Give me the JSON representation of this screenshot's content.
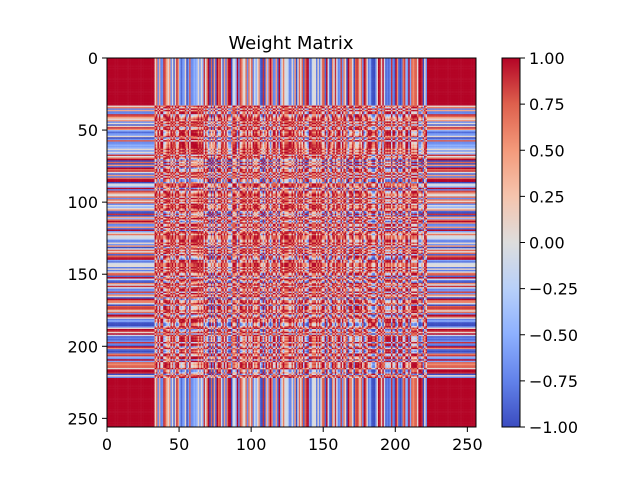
{
  "chart_data": {
    "type": "heatmap",
    "title": "Weight Matrix",
    "xlabel": "",
    "ylabel": "",
    "matrix_size": 256,
    "xlim": [
      0,
      256
    ],
    "ylim": [
      256,
      0
    ],
    "x_ticks": [
      0,
      50,
      100,
      150,
      200,
      250
    ],
    "y_ticks": [
      0,
      50,
      100,
      150,
      200,
      250
    ],
    "colormap": "coolwarm",
    "value_range": [
      -1.0,
      1.0
    ],
    "colorbar": {
      "ticks": [
        1.0,
        0.75,
        0.5,
        0.25,
        0.0,
        -0.25,
        -0.5,
        -0.75,
        -1.0
      ],
      "tick_labels": [
        "1.00",
        "0.75",
        "0.50",
        "0.25",
        "0.00",
        "−0.25",
        "−0.50",
        "−0.75",
        "−1.00"
      ]
    },
    "diagonal_value": 1.0,
    "structure": {
      "outer_band_low": [
        0,
        33
      ],
      "outer_band_high": [
        222,
        256
      ],
      "outer_corner_value": 1.0,
      "central_block": [
        33,
        222
      ]
    },
    "grid": false,
    "legend": "none"
  }
}
